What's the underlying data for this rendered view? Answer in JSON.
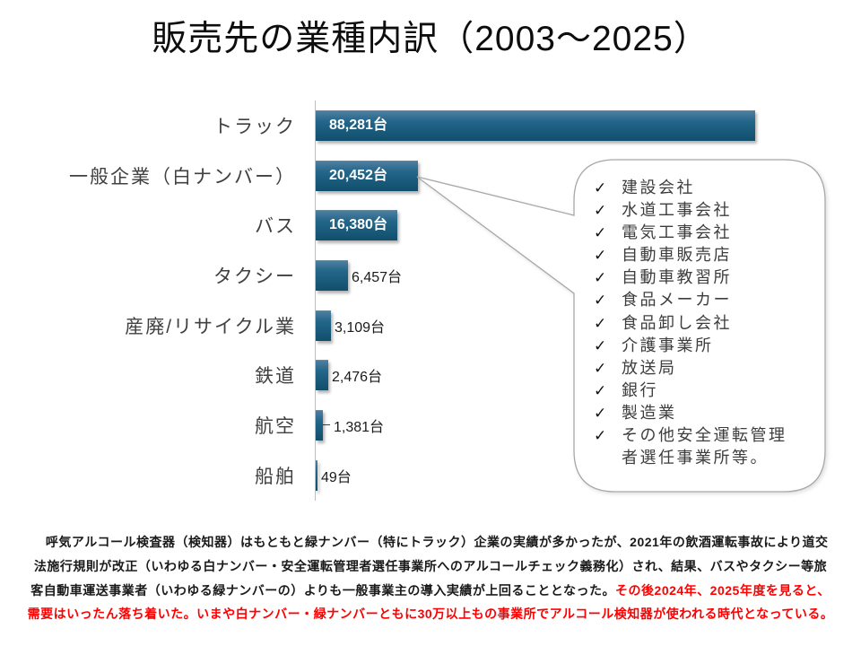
{
  "title": "販売先の業種内訳（2003～2025）",
  "chart_data": {
    "type": "bar",
    "orientation": "horizontal",
    "title": "販売先の業種内訳（2003～2025）",
    "unit": "台",
    "categories": [
      "トラック",
      "一般企業（白ナンバー）",
      "バス",
      "タクシー",
      "産廃/リサイクル業",
      "鉄道",
      "航空",
      "船舶"
    ],
    "values": [
      88281,
      20452,
      16380,
      6457,
      3109,
      2476,
      1381,
      49
    ],
    "value_labels": [
      "88,281台",
      "20,452台",
      "16,380台",
      "6,457台",
      "3,109台",
      "2,476台",
      "1,381台",
      "49台"
    ],
    "label_position": [
      "inside",
      "inside",
      "inside",
      "outside",
      "outside",
      "outside",
      "outside-leader",
      "outside"
    ],
    "xlim": [
      0,
      88281
    ],
    "grid": "off",
    "bar_color_top": "#4e7ea0",
    "bar_color_mid": "#226689",
    "bar_color_bottom": "#114e6b",
    "axis_color": "#bfbfbf"
  },
  "callout": {
    "check_glyph": "✓",
    "border_color": "#a8a8a8",
    "fill_color": "#ffffff",
    "items": [
      "建設会社",
      "水道工事会社",
      "電気工事会社",
      "自動車販売店",
      "自動車教習所",
      "食品メーカー",
      "食品卸し会社",
      "介護事業所",
      "放送局",
      "銀行",
      "製造業",
      "その他安全運転管理\n者選任事業所等。"
    ]
  },
  "footer": {
    "text_color": "#1a1a1a",
    "red_color": "#ff0000",
    "lines": [
      {
        "segments": [
          {
            "text": "　呼気アルコール検査器（検知器）はもともと緑ナンバー（特にトラック）企業の実績が多かったが、2021年の飲酒運転事故により道交",
            "color": "black"
          }
        ]
      },
      {
        "segments": [
          {
            "text": "法施行規則が改正（いわゆる白ナンバー・安全運転管理者選任事業所へのアルコールチェック義務化）され、結果、バスやタクシー等旅",
            "color": "black"
          }
        ]
      },
      {
        "segments": [
          {
            "text": "客自動車運送事業者（いわゆる緑ナンバーの）よりも一般事業主の導入実績が上回ることとなった。",
            "color": "black"
          },
          {
            "text": "その後2024年、2025年度を見ると、",
            "color": "red"
          }
        ]
      },
      {
        "segments": [
          {
            "text": "需要はいったん落ち着いた。いまや白ナンバー・緑ナンバーともに30万以上もの事業所でアルコール検知器が使われる時代となっている。",
            "color": "red"
          }
        ]
      }
    ]
  }
}
